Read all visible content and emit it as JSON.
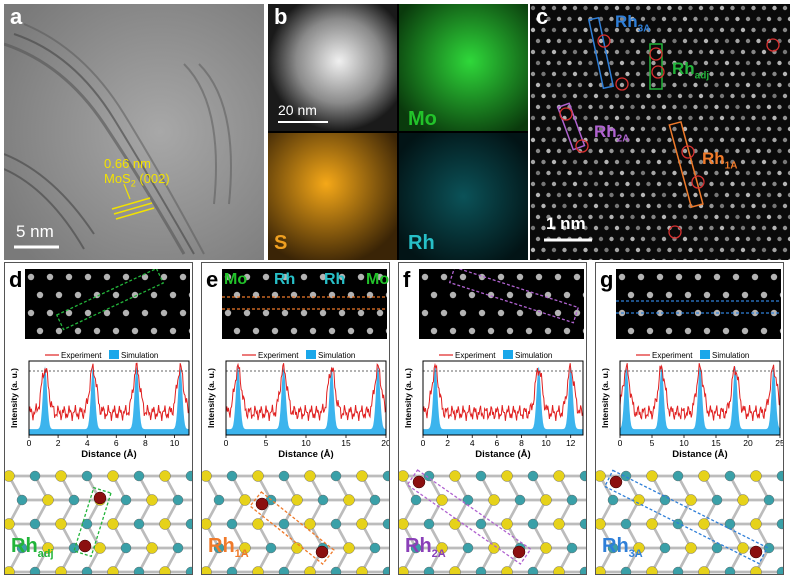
{
  "panels": {
    "a": {
      "letter": "a",
      "spacing": "0.66 nm",
      "plane": "MoS",
      "plane_sub": "2",
      "plane_hkl": "(002)",
      "scalebar": "5 nm"
    },
    "b": {
      "letter": "b",
      "scalebar": "20 nm",
      "maps": [
        "Mo",
        "S",
        "Rh"
      ],
      "colors": {
        "Mo": "#22c32a",
        "S": "#f0a020",
        "Rh": "#27c0c8"
      }
    },
    "c": {
      "letter": "c",
      "scalebar": "1 nm",
      "labels": [
        {
          "main": "Rh",
          "sub": "3A",
          "color": "#2f7fd8"
        },
        {
          "main": "Rh",
          "sub": "adj",
          "color": "#22b43a"
        },
        {
          "main": "Rh",
          "sub": "2A",
          "color": "#b062d0"
        },
        {
          "main": "Rh",
          "sub": "1A",
          "color": "#f07a2a"
        }
      ]
    },
    "e_top_labels": [
      "Mo",
      "Rh",
      "Rh",
      "Mo"
    ]
  },
  "profiles": [
    {
      "letter": "d",
      "struct_label": "Rh",
      "struct_sub": "adj",
      "struct_color": "#22b43a",
      "box_color": "#22b43a",
      "xticks": [
        "0",
        "2",
        "4",
        "6",
        "8",
        "10"
      ],
      "xmax": 11,
      "peaks": [
        1.1,
        4.4,
        7.4,
        10.4
      ]
    },
    {
      "letter": "e",
      "struct_label": "Rh",
      "struct_sub": "1A",
      "struct_color": "#f07a2a",
      "box_color": "#f07a2a",
      "xticks": [
        "0",
        "5",
        "10",
        "15",
        "20"
      ],
      "xmax": 20,
      "peaks": [
        1.5,
        7.2,
        13.2,
        19
      ]
    },
    {
      "letter": "f",
      "struct_label": "Rh",
      "struct_sub": "2A",
      "struct_color": "#8a3fb8",
      "box_color": "#b062d0",
      "xticks": [
        "0",
        "2",
        "4",
        "6",
        "8",
        "10",
        "12"
      ],
      "xmax": 13,
      "peaks": [
        1,
        9.4,
        12
      ]
    },
    {
      "letter": "g",
      "struct_label": "Rh",
      "struct_sub": "3A",
      "struct_color": "#2f7fd8",
      "box_color": "#2f7fd8",
      "xticks": [
        "0",
        "5",
        "10",
        "15",
        "20",
        "25"
      ],
      "xmax": 25,
      "peaks": [
        1,
        6.5,
        12.5,
        18,
        24
      ]
    }
  ],
  "plot_text": {
    "legend_exp": "Experiment",
    "legend_sim": "Simulation",
    "xlabel": "Distance (Å)",
    "ylabel": "Intensity (a. u.)"
  },
  "colors": {
    "experiment": "#e02020",
    "simulation": "#1aa7ea",
    "mo_atom": "#3aa0a8",
    "s_atom": "#e6d21a",
    "rh_atom": "#8b1010"
  }
}
